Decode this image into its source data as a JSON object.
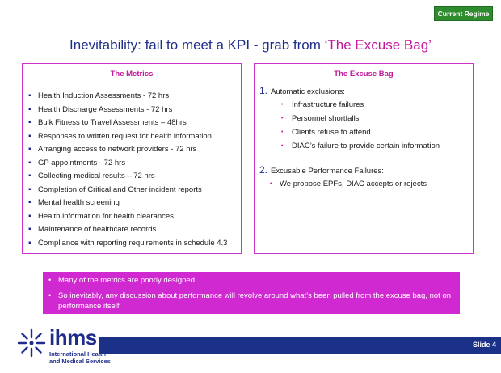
{
  "badge": {
    "label": "Current Regime",
    "color": "#2e8b2e"
  },
  "title": {
    "prefix": "Inevitability: fail to meet a KPI - grab from ‘",
    "highlight": "The Excuse Bag",
    "suffix": "’"
  },
  "metrics": {
    "heading": "The Metrics",
    "items": [
      "Health Induction Assessments  - 72 hrs",
      "Health Discharge Assessments - 72 hrs",
      "Bulk Fitness to Travel Assessments – 48hrs",
      "Responses to written request for health information",
      "Arranging access to network providers  - 72 hrs",
      "GP appointments  - 72 hrs",
      "Collecting medical results – 72 hrs",
      "Completion of Critical and Other incident reports",
      "Mental health screening",
      "Health information for health clearances",
      "Maintenance of healthcare records",
      "Compliance with reporting requirements in schedule 4.3"
    ]
  },
  "excuse_bag": {
    "heading": "The Excuse Bag",
    "sections": [
      {
        "number": "1.",
        "title": "Automatic exclusions:",
        "items": [
          "Infrastructure failures",
          "Personnel shortfalls",
          "Clients refuse to attend",
          "DIAC’s failure to provide certain information"
        ]
      },
      {
        "number": "2.",
        "title": "Excusable Performance Failures:",
        "items": [
          "We propose EPFs, DIAC accepts or rejects"
        ]
      }
    ]
  },
  "callout": {
    "color": "#d129d1",
    "bullets": [
      "Many of the metrics are poorly designed",
      "So inevitably, any discussion about performance will revolve around what’s been pulled from the excuse bag, not on performance itself"
    ]
  },
  "logo": {
    "word": "ihms",
    "line1": "International Health",
    "line2": "and Medical Services"
  },
  "footer": {
    "slide": "Slide 4",
    "color": "#1a3187"
  },
  "icons": {
    "bullet": "square-bullet-icon",
    "sub_bullet": "dot-bullet-icon",
    "logo": "starburst-logo-icon"
  }
}
